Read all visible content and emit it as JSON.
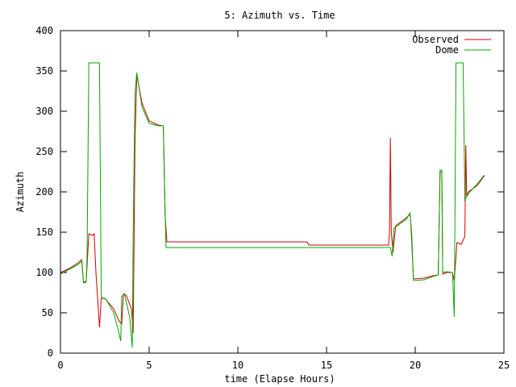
{
  "chart_data": {
    "type": "line",
    "title": "5: Azimuth vs. Time",
    "xlabel": "time (Elapse Hours)",
    "ylabel": "Azimuth",
    "xlim": [
      0,
      25
    ],
    "ylim": [
      0,
      400
    ],
    "x_ticks": [
      0,
      5,
      10,
      15,
      20,
      25
    ],
    "y_ticks": [
      0,
      50,
      100,
      150,
      200,
      250,
      300,
      350,
      400
    ],
    "grid": false,
    "legend_position": "top-right",
    "series": [
      {
        "name": "Observed",
        "color": "#cc0000",
        "points": [
          [
            0.0,
            100
          ],
          [
            0.5,
            105
          ],
          [
            1.0,
            112
          ],
          [
            1.2,
            116
          ],
          [
            1.3,
            88
          ],
          [
            1.45,
            89
          ],
          [
            1.6,
            148
          ],
          [
            1.8,
            146
          ],
          [
            1.9,
            148
          ],
          [
            2.0,
            100
          ],
          [
            2.2,
            32
          ],
          [
            2.3,
            68
          ],
          [
            2.5,
            68
          ],
          [
            3.0,
            55
          ],
          [
            3.3,
            40
          ],
          [
            3.45,
            36
          ],
          [
            3.55,
            73
          ],
          [
            3.7,
            72
          ],
          [
            4.0,
            55
          ],
          [
            4.1,
            25
          ],
          [
            4.2,
            260
          ],
          [
            4.3,
            345
          ],
          [
            4.6,
            310
          ],
          [
            5.0,
            288
          ],
          [
            5.5,
            283
          ],
          [
            5.8,
            282
          ],
          [
            5.9,
            170
          ],
          [
            6.0,
            138
          ],
          [
            10.0,
            138
          ],
          [
            13.9,
            138
          ],
          [
            14.0,
            134
          ],
          [
            16.0,
            134
          ],
          [
            18.5,
            134
          ],
          [
            18.55,
            150
          ],
          [
            18.6,
            267
          ],
          [
            18.65,
            150
          ],
          [
            18.75,
            125
          ],
          [
            18.9,
            158
          ],
          [
            19.5,
            168
          ],
          [
            19.7,
            172
          ],
          [
            19.75,
            162
          ],
          [
            19.9,
            92
          ],
          [
            20.5,
            93
          ],
          [
            21.0,
            96
          ],
          [
            21.3,
            97
          ],
          [
            21.4,
            225
          ],
          [
            21.5,
            225
          ],
          [
            21.55,
            98
          ],
          [
            21.8,
            100
          ],
          [
            22.1,
            100
          ],
          [
            22.2,
            90
          ],
          [
            22.3,
            120
          ],
          [
            22.35,
            137
          ],
          [
            22.6,
            135
          ],
          [
            22.8,
            145
          ],
          [
            22.85,
            258
          ],
          [
            22.9,
            195
          ],
          [
            23.0,
            200
          ],
          [
            23.5,
            208
          ],
          [
            23.9,
            220
          ]
        ]
      },
      {
        "name": "Dome",
        "color": "#00aa00",
        "points": [
          [
            0.0,
            98
          ],
          [
            0.5,
            104
          ],
          [
            1.0,
            110
          ],
          [
            1.2,
            114
          ],
          [
            1.25,
            100
          ],
          [
            1.3,
            87
          ],
          [
            1.45,
            88
          ],
          [
            1.5,
            120
          ],
          [
            1.6,
            360
          ],
          [
            2.2,
            360
          ],
          [
            2.3,
            70
          ],
          [
            2.6,
            66
          ],
          [
            3.0,
            50
          ],
          [
            3.3,
            25
          ],
          [
            3.4,
            15
          ],
          [
            3.45,
            70
          ],
          [
            3.6,
            74
          ],
          [
            3.9,
            45
          ],
          [
            4.0,
            20
          ],
          [
            4.05,
            7
          ],
          [
            4.1,
            150
          ],
          [
            4.2,
            320
          ],
          [
            4.3,
            348
          ],
          [
            4.6,
            305
          ],
          [
            5.0,
            285
          ],
          [
            5.5,
            282
          ],
          [
            5.8,
            282
          ],
          [
            5.9,
            175
          ],
          [
            5.95,
            131
          ],
          [
            10.0,
            131
          ],
          [
            14.0,
            131
          ],
          [
            18.0,
            131
          ],
          [
            18.5,
            131
          ],
          [
            18.6,
            131
          ],
          [
            18.7,
            120
          ],
          [
            18.8,
            155
          ],
          [
            19.5,
            166
          ],
          [
            19.7,
            174
          ],
          [
            19.8,
            150
          ],
          [
            19.9,
            90
          ],
          [
            20.5,
            91
          ],
          [
            21.0,
            95
          ],
          [
            21.3,
            97
          ],
          [
            21.4,
            227
          ],
          [
            21.5,
            227
          ],
          [
            21.55,
            100
          ],
          [
            21.8,
            101
          ],
          [
            22.1,
            100
          ],
          [
            22.2,
            45
          ],
          [
            22.3,
            360
          ],
          [
            22.7,
            360
          ],
          [
            22.8,
            190
          ],
          [
            23.0,
            198
          ],
          [
            23.5,
            210
          ],
          [
            23.9,
            221
          ]
        ]
      }
    ]
  }
}
